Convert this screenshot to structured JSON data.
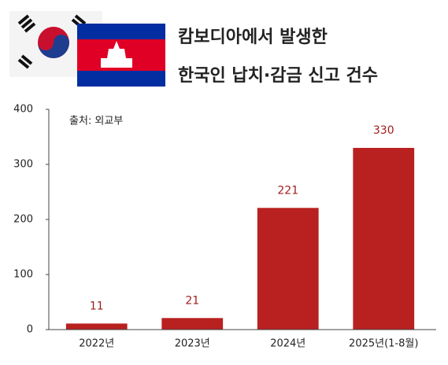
{
  "chart_data": {
    "type": "bar",
    "title": [
      "캄보디아에서 발생한",
      "한국인 납치·감금 신고 건수"
    ],
    "source": "출처: 외교부",
    "categories": [
      "2022년",
      "2023년",
      "2024년",
      "2025년(1-8월)"
    ],
    "values": [
      11,
      21,
      221,
      330
    ],
    "color": "#b8211f",
    "ylim": [
      0,
      400
    ],
    "yticks": [
      0,
      100,
      200,
      300,
      400
    ],
    "grid": false
  }
}
